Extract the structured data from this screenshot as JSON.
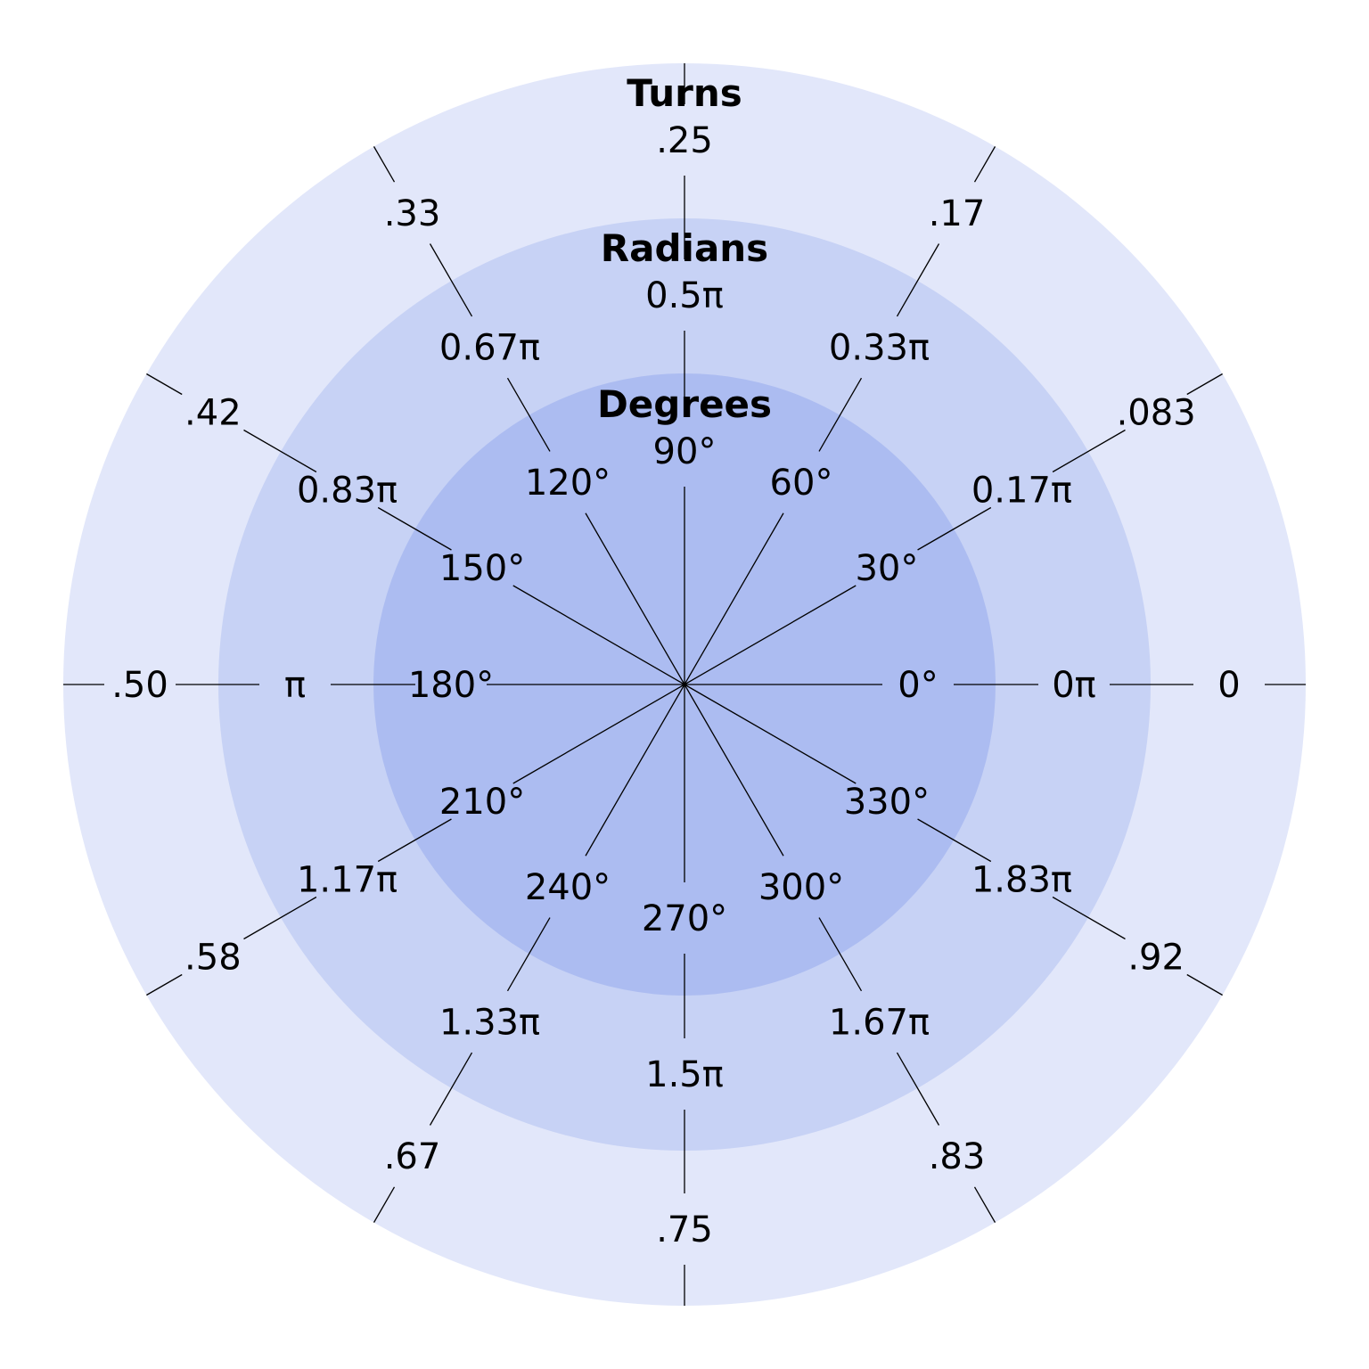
{
  "colors": {
    "background": "#ffffff",
    "turns_ring": "#e2e7fa",
    "radians_ring": "#c7d2f5",
    "degrees_disk": "#acbcf1",
    "lines": "#000000"
  },
  "rings": [
    {
      "key": "degrees",
      "title": "Degrees",
      "color": "#acbcf1",
      "labels": [
        "0°",
        "30°",
        "60°",
        "90°",
        "120°",
        "150°",
        "180°",
        "210°",
        "240°",
        "270°",
        "300°",
        "330°"
      ]
    },
    {
      "key": "radians",
      "title": "Radians",
      "color": "#c7d2f5",
      "labels": [
        "0π",
        "0.17π",
        "0.33π",
        "0.5π",
        "0.67π",
        "0.83π",
        "π",
        "1.17π",
        "1.33π",
        "1.5π",
        "1.67π",
        "1.83π"
      ]
    },
    {
      "key": "turns",
      "title": "Turns",
      "color": "#e2e7fa",
      "labels": [
        "0",
        ".083",
        ".17",
        ".25",
        ".33",
        ".42",
        ".50",
        ".58",
        ".67",
        ".75",
        ".83",
        ".92"
      ]
    }
  ],
  "angles_degrees": [
    0,
    30,
    60,
    90,
    120,
    150,
    180,
    210,
    240,
    270,
    300,
    330
  ]
}
